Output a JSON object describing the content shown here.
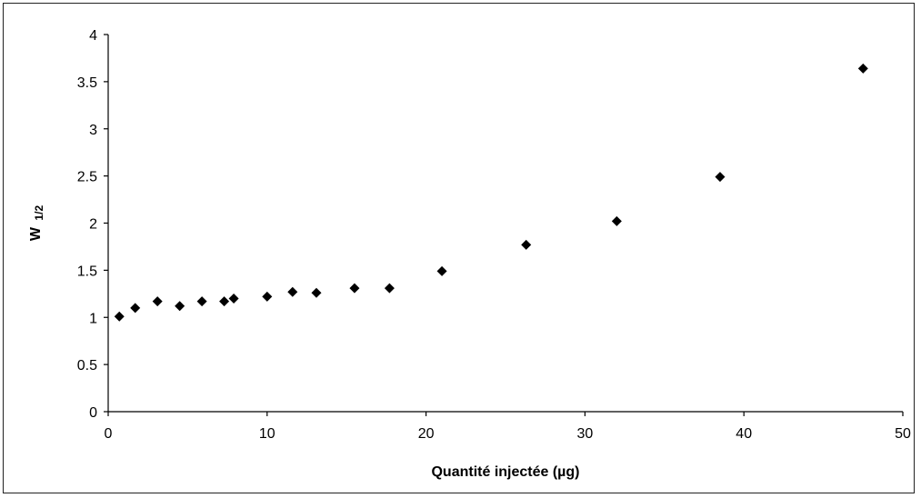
{
  "chart_data": {
    "type": "scatter",
    "title": "",
    "xlabel": "Quantité injectée (µg)",
    "ylabel": "W",
    "ylabel_subscript": "1/2",
    "xlim": [
      0,
      50
    ],
    "ylim": [
      0,
      4
    ],
    "x_ticks": [
      "0",
      "10",
      "20",
      "30",
      "40",
      "50"
    ],
    "y_ticks": [
      "0",
      "0.5",
      "1",
      "1.5",
      "2",
      "2.5",
      "3",
      "3.5",
      "4"
    ],
    "grid": false,
    "legend": "none",
    "marker": "diamond",
    "marker_color": "#000000",
    "points": [
      {
        "x": 0.7,
        "y": 1.01
      },
      {
        "x": 1.7,
        "y": 1.1
      },
      {
        "x": 3.1,
        "y": 1.17
      },
      {
        "x": 4.5,
        "y": 1.12
      },
      {
        "x": 5.9,
        "y": 1.17
      },
      {
        "x": 7.3,
        "y": 1.17
      },
      {
        "x": 7.9,
        "y": 1.2
      },
      {
        "x": 10.0,
        "y": 1.22
      },
      {
        "x": 11.6,
        "y": 1.27
      },
      {
        "x": 13.1,
        "y": 1.26
      },
      {
        "x": 15.5,
        "y": 1.31
      },
      {
        "x": 17.7,
        "y": 1.31
      },
      {
        "x": 21.0,
        "y": 1.49
      },
      {
        "x": 26.3,
        "y": 1.77
      },
      {
        "x": 32.0,
        "y": 2.02
      },
      {
        "x": 38.5,
        "y": 2.49
      },
      {
        "x": 47.5,
        "y": 3.64
      }
    ]
  }
}
